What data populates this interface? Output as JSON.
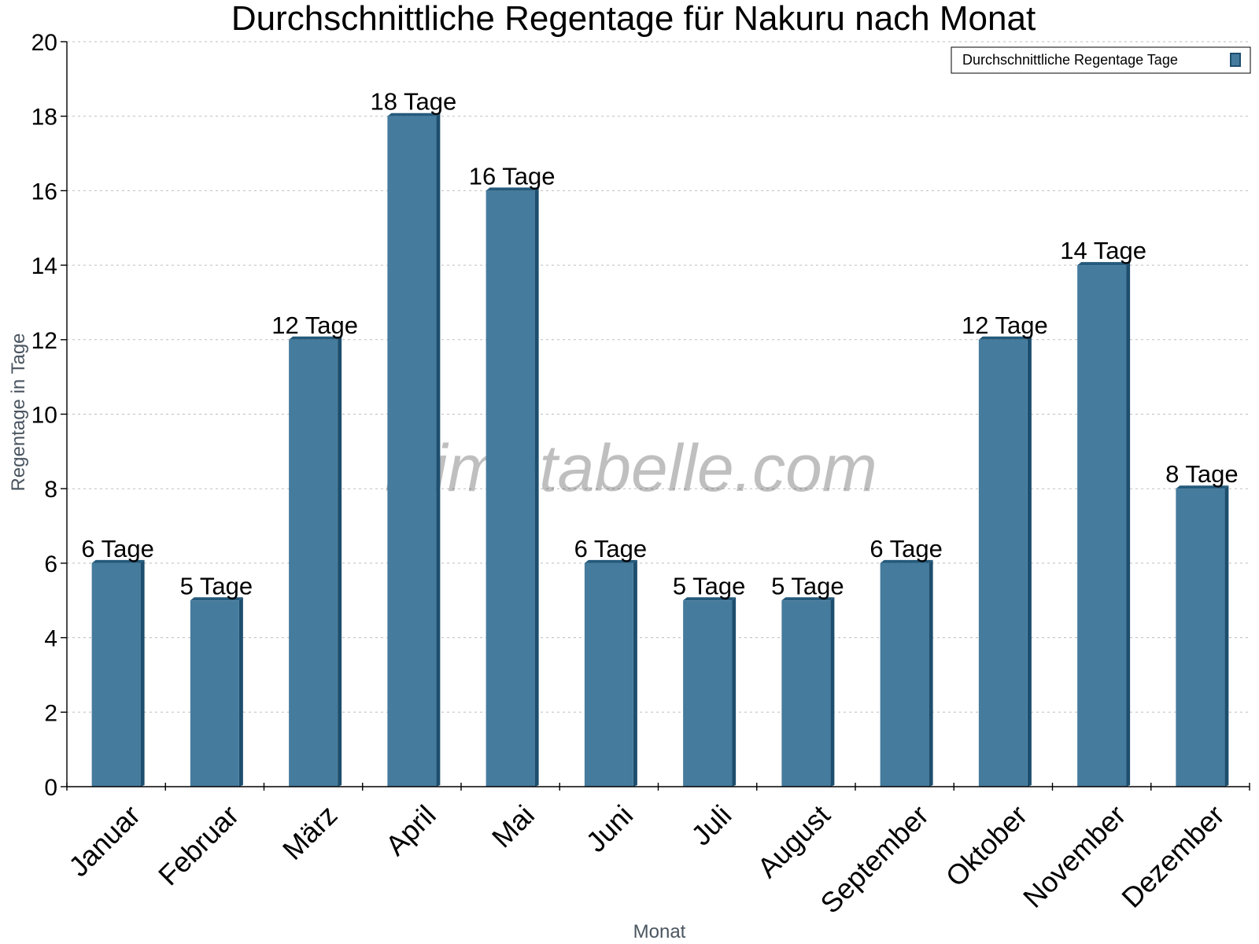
{
  "watermark": "klimatabelle.com",
  "colors": {
    "bar_front": "#457b9d",
    "bar_side": "#1d4e6e",
    "bar_top": "#245a7c"
  },
  "chart_data": {
    "type": "bar",
    "title": "Durchschnittliche Regentage für Nakuru nach Monat",
    "xlabel": "Monat",
    "ylabel": "Regentage in Tage",
    "ylim": [
      0,
      20
    ],
    "yticks": [
      0,
      2,
      4,
      6,
      8,
      10,
      12,
      14,
      16,
      18,
      20
    ],
    "grid": true,
    "legend_position": "top-right",
    "categories": [
      "Januar",
      "Februar",
      "März",
      "April",
      "Mai",
      "Juni",
      "Juli",
      "August",
      "September",
      "Oktober",
      "November",
      "Dezember"
    ],
    "series": [
      {
        "name": "Durchschnittliche Regentage Tage",
        "values": [
          6,
          5,
          12,
          18,
          16,
          6,
          5,
          5,
          6,
          12,
          14,
          8
        ],
        "labels": [
          "6 Tage",
          "5 Tage",
          "12 Tage",
          "18 Tage",
          "16 Tage",
          "6 Tage",
          "5 Tage",
          "5 Tage",
          "6 Tage",
          "12 Tage",
          "14 Tage",
          "8 Tage"
        ]
      }
    ]
  }
}
